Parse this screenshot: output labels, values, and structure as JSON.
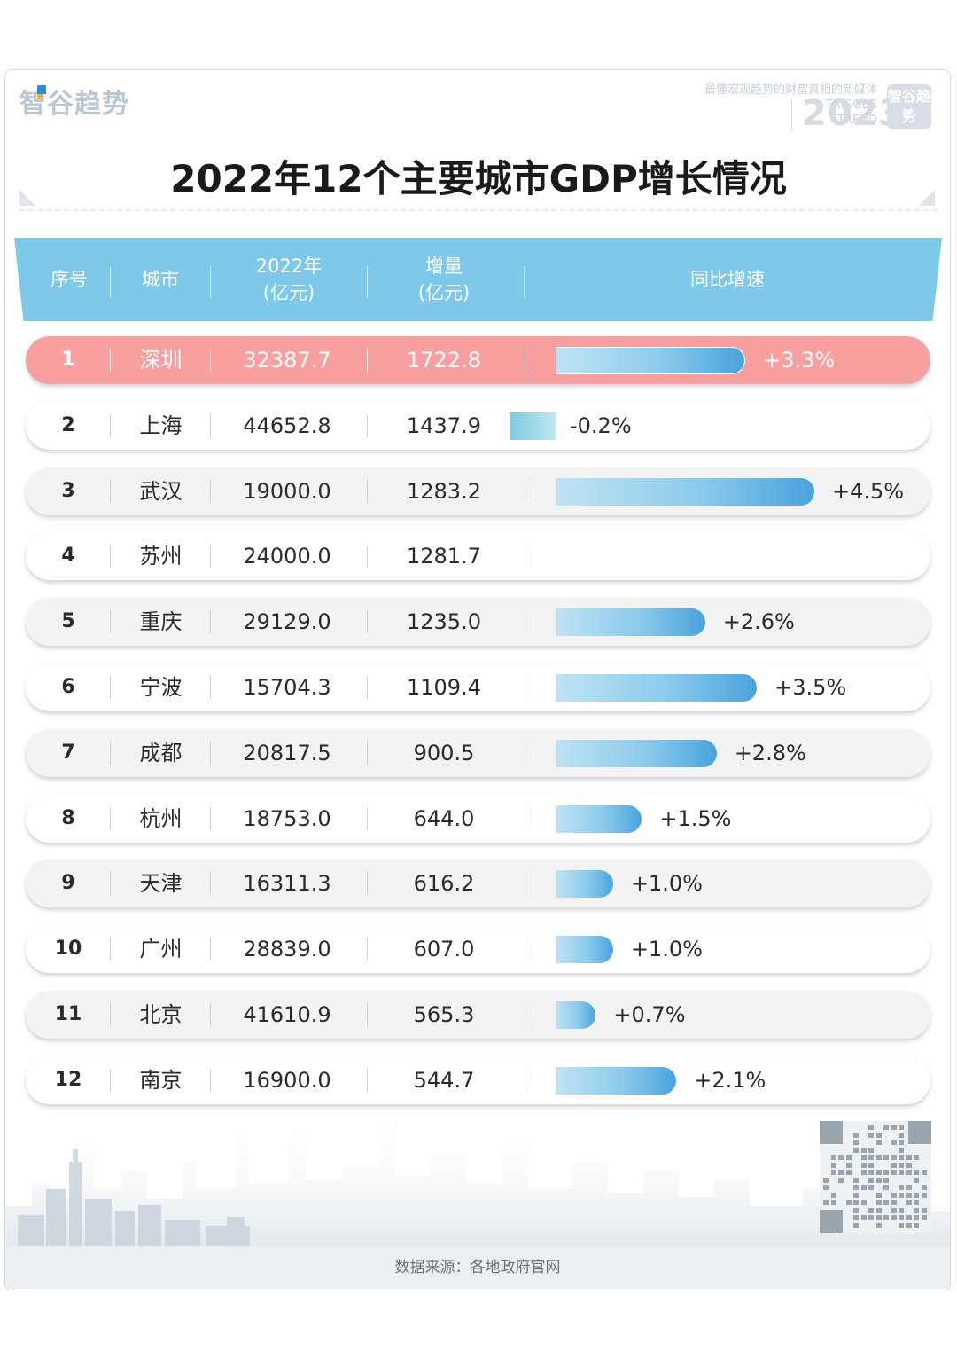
{
  "brand": {
    "logo_text": "智谷趋势",
    "slogan": "最懂宏观趋势的财富真相的新媒体",
    "trigger": "TRIGGER",
    "trend": "TREND",
    "year": "2023",
    "badge": "智谷趋势"
  },
  "title": "2022年12个主要城市GDP增长情况",
  "table": {
    "headers": {
      "rank": "序号",
      "city": "城市",
      "gdp_line1": "2022年",
      "gdp_line2": "(亿元)",
      "inc_line1": "增量",
      "inc_line2": "(亿元)",
      "growth": "同比增速"
    }
  },
  "chart_data": {
    "type": "table",
    "title": "2022年12个主要城市GDP增长情况",
    "columns": [
      "序号",
      "城市",
      "2022年(亿元)",
      "增量(亿元)",
      "同比增速"
    ],
    "rows": [
      {
        "rank": "1",
        "city": "深圳",
        "gdp": "32387.7",
        "increase": "1722.8",
        "growth": 3.3,
        "growth_label": "+3.3%",
        "highlight": true
      },
      {
        "rank": "2",
        "city": "上海",
        "gdp": "44652.8",
        "increase": "1437.9",
        "growth": -0.2,
        "growth_label": "-0.2%"
      },
      {
        "rank": "3",
        "city": "武汉",
        "gdp": "19000.0",
        "increase": "1283.2",
        "growth": 4.5,
        "growth_label": "+4.5%"
      },
      {
        "rank": "4",
        "city": "苏州",
        "gdp": "24000.0",
        "increase": "1281.7",
        "growth": null,
        "growth_label": ""
      },
      {
        "rank": "5",
        "city": "重庆",
        "gdp": "29129.0",
        "increase": "1235.0",
        "growth": 2.6,
        "growth_label": "+2.6%"
      },
      {
        "rank": "6",
        "city": "宁波",
        "gdp": "15704.3",
        "increase": "1109.4",
        "growth": 3.5,
        "growth_label": "+3.5%"
      },
      {
        "rank": "7",
        "city": "成都",
        "gdp": "20817.5",
        "increase": "900.5",
        "growth": 2.8,
        "growth_label": "+2.8%"
      },
      {
        "rank": "8",
        "city": "杭州",
        "gdp": "18753.0",
        "increase": "644.0",
        "growth": 1.5,
        "growth_label": "+1.5%"
      },
      {
        "rank": "9",
        "city": "天津",
        "gdp": "16311.3",
        "increase": "616.2",
        "growth": 1.0,
        "growth_label": "+1.0%"
      },
      {
        "rank": "10",
        "city": "广州",
        "gdp": "28839.0",
        "increase": "607.0",
        "growth": 1.0,
        "growth_label": "+1.0%"
      },
      {
        "rank": "11",
        "city": "北京",
        "gdp": "41610.9",
        "increase": "565.3",
        "growth": 0.7,
        "growth_label": "+0.7%"
      },
      {
        "rank": "12",
        "city": "南京",
        "gdp": "16900.0",
        "increase": "544.7",
        "growth": 2.1,
        "growth_label": "+2.1%"
      }
    ]
  },
  "colors": {
    "header": "#7ec8ea",
    "highlight_row": "#f8a0a0",
    "bar_start": "#c0e3f4",
    "bar_end": "#4aa3dc"
  },
  "footer": "数据来源：各地政府官网"
}
